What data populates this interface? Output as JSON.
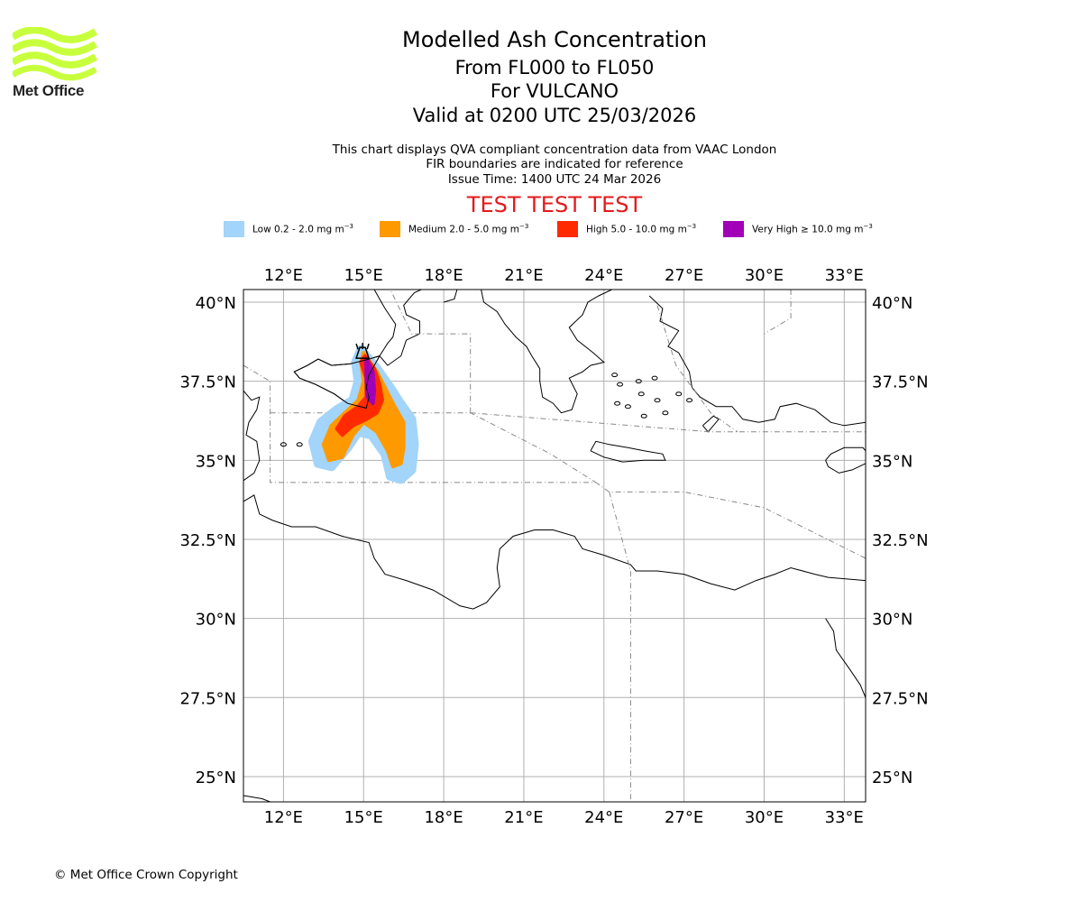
{
  "logo": {
    "text": "Met Office",
    "color": "#c8ff3c"
  },
  "header": {
    "title": "Modelled Ash Concentration",
    "levels": "From FL000 to FL050",
    "volcano": "For VULCANO",
    "valid": "Valid at 0200 UTC 25/03/2026",
    "desc1": "This chart displays QVA compliant concentration data from VAAC London",
    "desc2": "FIR boundaries are indicated for reference",
    "issue": "Issue Time: 1400 UTC 24 Mar 2026",
    "test_banner": "TEST TEST TEST"
  },
  "legend": [
    {
      "name": "Low",
      "label": "Low 0.2 - 2.0 mg m",
      "exp": "−3",
      "color": "#a3d4fa"
    },
    {
      "name": "Medium",
      "label": "Medium 2.0 - 5.0 mg m",
      "exp": "−3",
      "color": "#ff9900"
    },
    {
      "name": "High",
      "label": "High 5.0 - 10.0 mg m",
      "exp": "−3",
      "color": "#ff2a00"
    },
    {
      "name": "Very High",
      "label": "Very High ≥ 10.0 mg m",
      "exp": "−3",
      "color": "#a200b8"
    }
  ],
  "map": {
    "lon_range": [
      10.5,
      33.8
    ],
    "lat_range": [
      24.2,
      40.4
    ],
    "lon_ticks": [
      12,
      15,
      18,
      21,
      24,
      27,
      30,
      33
    ],
    "lat_ticks": [
      25,
      27.5,
      30,
      32.5,
      35,
      37.5,
      40
    ],
    "lon_tick_labels": [
      "12°E",
      "15°E",
      "18°E",
      "21°E",
      "24°E",
      "27°E",
      "30°E",
      "33°E"
    ],
    "lat_tick_labels": [
      "25°N",
      "27.5°N",
      "30°N",
      "32.5°N",
      "35°N",
      "37.5°N",
      "40°N"
    ],
    "volcano_location": {
      "name": "Vulcano",
      "lon": 14.96,
      "lat": 38.4
    },
    "ash_zones": [
      {
        "level": "low",
        "color": "#a3d4fa",
        "outline": [
          [
            14.9,
            38.5
          ],
          [
            15.5,
            37.9
          ],
          [
            16.0,
            37.3
          ],
          [
            16.3,
            36.9
          ],
          [
            16.8,
            36.3
          ],
          [
            16.9,
            35.5
          ],
          [
            16.8,
            34.7
          ],
          [
            16.4,
            34.4
          ],
          [
            16.0,
            34.5
          ],
          [
            15.8,
            35.2
          ],
          [
            15.3,
            35.8
          ],
          [
            14.8,
            35.9
          ],
          [
            14.4,
            35.4
          ],
          [
            13.8,
            34.8
          ],
          [
            13.3,
            34.9
          ],
          [
            13.1,
            35.6
          ],
          [
            13.4,
            36.2
          ],
          [
            14.0,
            36.6
          ],
          [
            14.6,
            36.9
          ],
          [
            14.8,
            37.5
          ],
          [
            14.7,
            38.1
          ]
        ]
      },
      {
        "level": "medium",
        "color": "#ff9900",
        "outline": [
          [
            15.0,
            38.4
          ],
          [
            15.5,
            37.8
          ],
          [
            15.8,
            37.3
          ],
          [
            16.1,
            36.8
          ],
          [
            16.5,
            36.2
          ],
          [
            16.5,
            35.4
          ],
          [
            16.4,
            34.9
          ],
          [
            16.1,
            34.8
          ],
          [
            15.9,
            35.3
          ],
          [
            15.5,
            35.9
          ],
          [
            15.0,
            36.2
          ],
          [
            14.6,
            35.8
          ],
          [
            14.2,
            35.1
          ],
          [
            13.7,
            35.0
          ],
          [
            13.5,
            35.5
          ],
          [
            13.8,
            36.1
          ],
          [
            14.3,
            36.5
          ],
          [
            14.8,
            36.9
          ],
          [
            15.0,
            37.5
          ],
          [
            14.9,
            38.1
          ]
        ]
      },
      {
        "level": "high",
        "color": "#ff2a00",
        "outline": [
          [
            15.05,
            38.3
          ],
          [
            15.4,
            37.9
          ],
          [
            15.6,
            37.4
          ],
          [
            15.7,
            36.9
          ],
          [
            15.5,
            36.5
          ],
          [
            15.1,
            36.3
          ],
          [
            14.6,
            36.1
          ],
          [
            14.2,
            35.8
          ],
          [
            14.0,
            36.0
          ],
          [
            14.3,
            36.4
          ],
          [
            14.8,
            36.7
          ],
          [
            15.1,
            37.0
          ],
          [
            15.1,
            37.6
          ],
          [
            14.9,
            38.1
          ]
        ]
      },
      {
        "level": "very_high",
        "color": "#a200b8",
        "outline": [
          [
            15.1,
            38.2
          ],
          [
            15.35,
            37.8
          ],
          [
            15.4,
            37.2
          ],
          [
            15.35,
            36.8
          ],
          [
            15.15,
            37.0
          ],
          [
            15.1,
            37.6
          ]
        ]
      }
    ]
  },
  "footer": {
    "copyright": "© Met Office Crown Copyright"
  }
}
